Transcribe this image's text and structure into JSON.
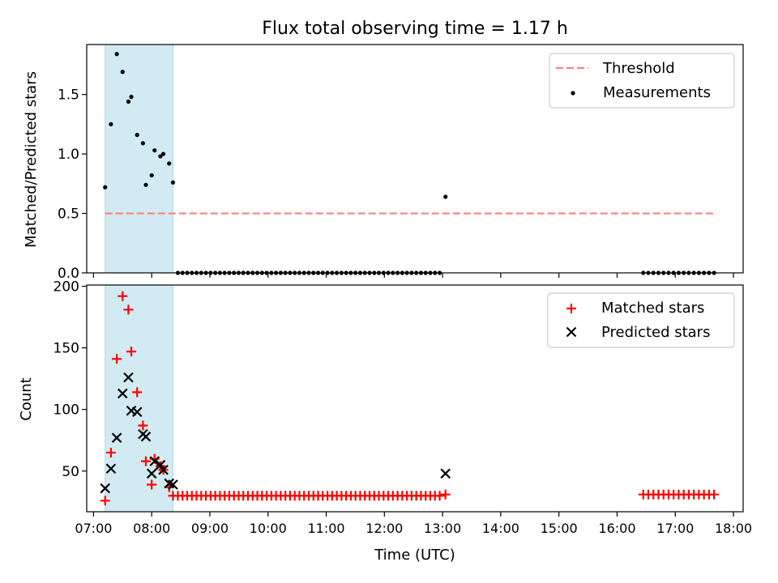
{
  "figure": {
    "title": "Flux total observing time = 1.17 h"
  },
  "chart_data": [
    {
      "type": "scatter",
      "title": "Flux total observing time = 1.17 h",
      "xlabel": "",
      "ylabel": "Matched/Predicted stars",
      "xlim": [
        "06:53",
        "18:10"
      ],
      "ylim": [
        0,
        1.92
      ],
      "yticks": [
        "0.0",
        "0.5",
        "1.0",
        "1.5"
      ],
      "grid": false,
      "legend_position": "upper right",
      "shaded_interval": {
        "start": "07:12",
        "end": "08:22",
        "color": "#add8e6"
      },
      "threshold": {
        "name": "Threshold",
        "y": 0.5,
        "x_start": "07:12",
        "x_end": "17:40",
        "color": "#ff7f7f"
      },
      "series": [
        {
          "name": "Measurements",
          "color": "#000000",
          "marker": "dot",
          "points": [
            {
              "x": "07:12",
              "y": 0.72
            },
            {
              "x": "07:18",
              "y": 1.25
            },
            {
              "x": "07:24",
              "y": 1.84
            },
            {
              "x": "07:30",
              "y": 1.69
            },
            {
              "x": "07:36",
              "y": 1.44
            },
            {
              "x": "07:39",
              "y": 1.48
            },
            {
              "x": "07:45",
              "y": 1.16
            },
            {
              "x": "07:51",
              "y": 1.09
            },
            {
              "x": "07:54",
              "y": 0.74
            },
            {
              "x": "08:00",
              "y": 0.82
            },
            {
              "x": "08:03",
              "y": 1.03
            },
            {
              "x": "08:09",
              "y": 0.98
            },
            {
              "x": "08:12",
              "y": 1.0
            },
            {
              "x": "08:18",
              "y": 0.92
            },
            {
              "x": "08:22",
              "y": 0.76
            },
            {
              "x": "13:03",
              "y": 0.64
            }
          ],
          "zeros": {
            "segments": [
              {
                "start": "08:27",
                "end": "12:57",
                "count": 57
              },
              {
                "start": "16:27",
                "end": "17:40",
                "count": 15
              }
            ]
          }
        }
      ]
    },
    {
      "type": "scatter",
      "xlabel": "Time (UTC)",
      "ylabel": "Count",
      "xlim": [
        "06:53",
        "18:10"
      ],
      "ylim": [
        17,
        201
      ],
      "yticks": [
        "50",
        "100",
        "150",
        "200"
      ],
      "xticks": [
        "07:00",
        "08:00",
        "09:00",
        "10:00",
        "11:00",
        "12:00",
        "13:00",
        "14:00",
        "15:00",
        "16:00",
        "17:00",
        "18:00"
      ],
      "grid": false,
      "legend_position": "upper right",
      "shaded_interval": {
        "start": "07:12",
        "end": "08:22",
        "color": "#add8e6"
      },
      "series": [
        {
          "name": "Matched stars",
          "color": "#ff0000",
          "marker": "plus",
          "points": [
            {
              "x": "07:12",
              "y": 26
            },
            {
              "x": "07:18",
              "y": 65
            },
            {
              "x": "07:24",
              "y": 141
            },
            {
              "x": "07:30",
              "y": 192
            },
            {
              "x": "07:36",
              "y": 181
            },
            {
              "x": "07:39",
              "y": 147
            },
            {
              "x": "07:45",
              "y": 114
            },
            {
              "x": "07:51",
              "y": 87
            },
            {
              "x": "07:54",
              "y": 58
            },
            {
              "x": "08:00",
              "y": 39
            },
            {
              "x": "08:03",
              "y": 60
            },
            {
              "x": "08:09",
              "y": 54
            },
            {
              "x": "08:12",
              "y": 51
            },
            {
              "x": "08:18",
              "y": 37
            },
            {
              "x": "08:22",
              "y": 30
            },
            {
              "x": "13:03",
              "y": 31
            }
          ],
          "constant_segments": [
            {
              "start": "08:27",
              "end": "12:57",
              "count": 57,
              "y": 30
            },
            {
              "start": "16:27",
              "end": "17:40",
              "count": 15,
              "y": 31
            }
          ]
        },
        {
          "name": "Predicted stars",
          "color": "#000000",
          "marker": "x",
          "points": [
            {
              "x": "07:12",
              "y": 36
            },
            {
              "x": "07:18",
              "y": 52
            },
            {
              "x": "07:24",
              "y": 77
            },
            {
              "x": "07:30",
              "y": 113
            },
            {
              "x": "07:36",
              "y": 126
            },
            {
              "x": "07:39",
              "y": 99
            },
            {
              "x": "07:45",
              "y": 98
            },
            {
              "x": "07:51",
              "y": 80
            },
            {
              "x": "07:54",
              "y": 78
            },
            {
              "x": "08:00",
              "y": 48
            },
            {
              "x": "08:03",
              "y": 58
            },
            {
              "x": "08:09",
              "y": 55
            },
            {
              "x": "08:12",
              "y": 51
            },
            {
              "x": "08:18",
              "y": 40
            },
            {
              "x": "08:22",
              "y": 39
            },
            {
              "x": "13:03",
              "y": 48
            }
          ]
        }
      ]
    }
  ]
}
